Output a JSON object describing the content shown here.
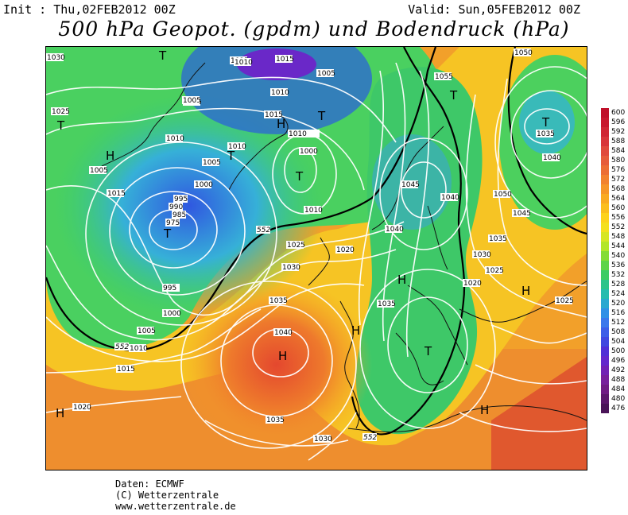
{
  "header": {
    "init": "Init : Thu,02FEB2012 00Z",
    "valid": "Valid: Sun,05FEB2012 00Z",
    "title": "500 hPa Geopot. (gpdm) und Bodendruck (hPa)"
  },
  "credits": {
    "line1": "Daten: ECMWF",
    "line2": "(C) Wetterzentrale",
    "line3": "www.wetterzentrale.de"
  },
  "legend": {
    "levels": [
      "600",
      "596",
      "592",
      "588",
      "584",
      "580",
      "576",
      "572",
      "568",
      "564",
      "560",
      "556",
      "552",
      "548",
      "544",
      "540",
      "536",
      "532",
      "528",
      "524",
      "520",
      "516",
      "512",
      "508",
      "504",
      "500",
      "496",
      "492",
      "488",
      "484",
      "480",
      "476"
    ],
    "colors": [
      "#c0102a",
      "#c8182e",
      "#d02634",
      "#d8363a",
      "#e04a3c",
      "#e65c3a",
      "#ec6e34",
      "#f2822e",
      "#f69628",
      "#f9aa22",
      "#fbbe1e",
      "#fdd21c",
      "#f4e01e",
      "#d6e624",
      "#b2e628",
      "#84dc34",
      "#5cd44a",
      "#3ccc64",
      "#2cc48a",
      "#26bcae",
      "#2aa8d0",
      "#3090e6",
      "#3a78ec",
      "#3c5ee8",
      "#4048e0",
      "#5030d6",
      "#6428cc",
      "#7222b4",
      "#78209c",
      "#701c84",
      "#5c186c",
      "#4a1458"
    ]
  },
  "map": {
    "labels": {
      "isobars": [
        "1030",
        "1025",
        "1015",
        "1005",
        "1015",
        "1010",
        "1010",
        "1015",
        "1005",
        "1010",
        "1000",
        "1055",
        "1050",
        "1035",
        "1040",
        "1010",
        "1005",
        "1010",
        "1010",
        "1005",
        "1015",
        "1005",
        "1000",
        "975",
        "985",
        "990",
        "995",
        "1000",
        "995",
        "1000",
        "1005",
        "1010",
        "1015",
        "1020",
        "1045",
        "1040",
        "1040",
        "1050",
        "1045",
        "1035",
        "1030",
        "1025",
        "1020",
        "1025",
        "1020",
        "1025",
        "1030",
        "1035",
        "1040",
        "1030",
        "1035",
        "1020",
        "1025",
        "1030",
        "1035"
      ],
      "isohypses": [
        "552",
        "552",
        "552",
        "552"
      ],
      "highs": [
        "H",
        "H",
        "H",
        "H",
        "H",
        "H",
        "H",
        "H",
        "H"
      ],
      "lows": [
        "T",
        "T",
        "T",
        "T",
        "T",
        "T",
        "T",
        "T",
        "T"
      ]
    }
  }
}
